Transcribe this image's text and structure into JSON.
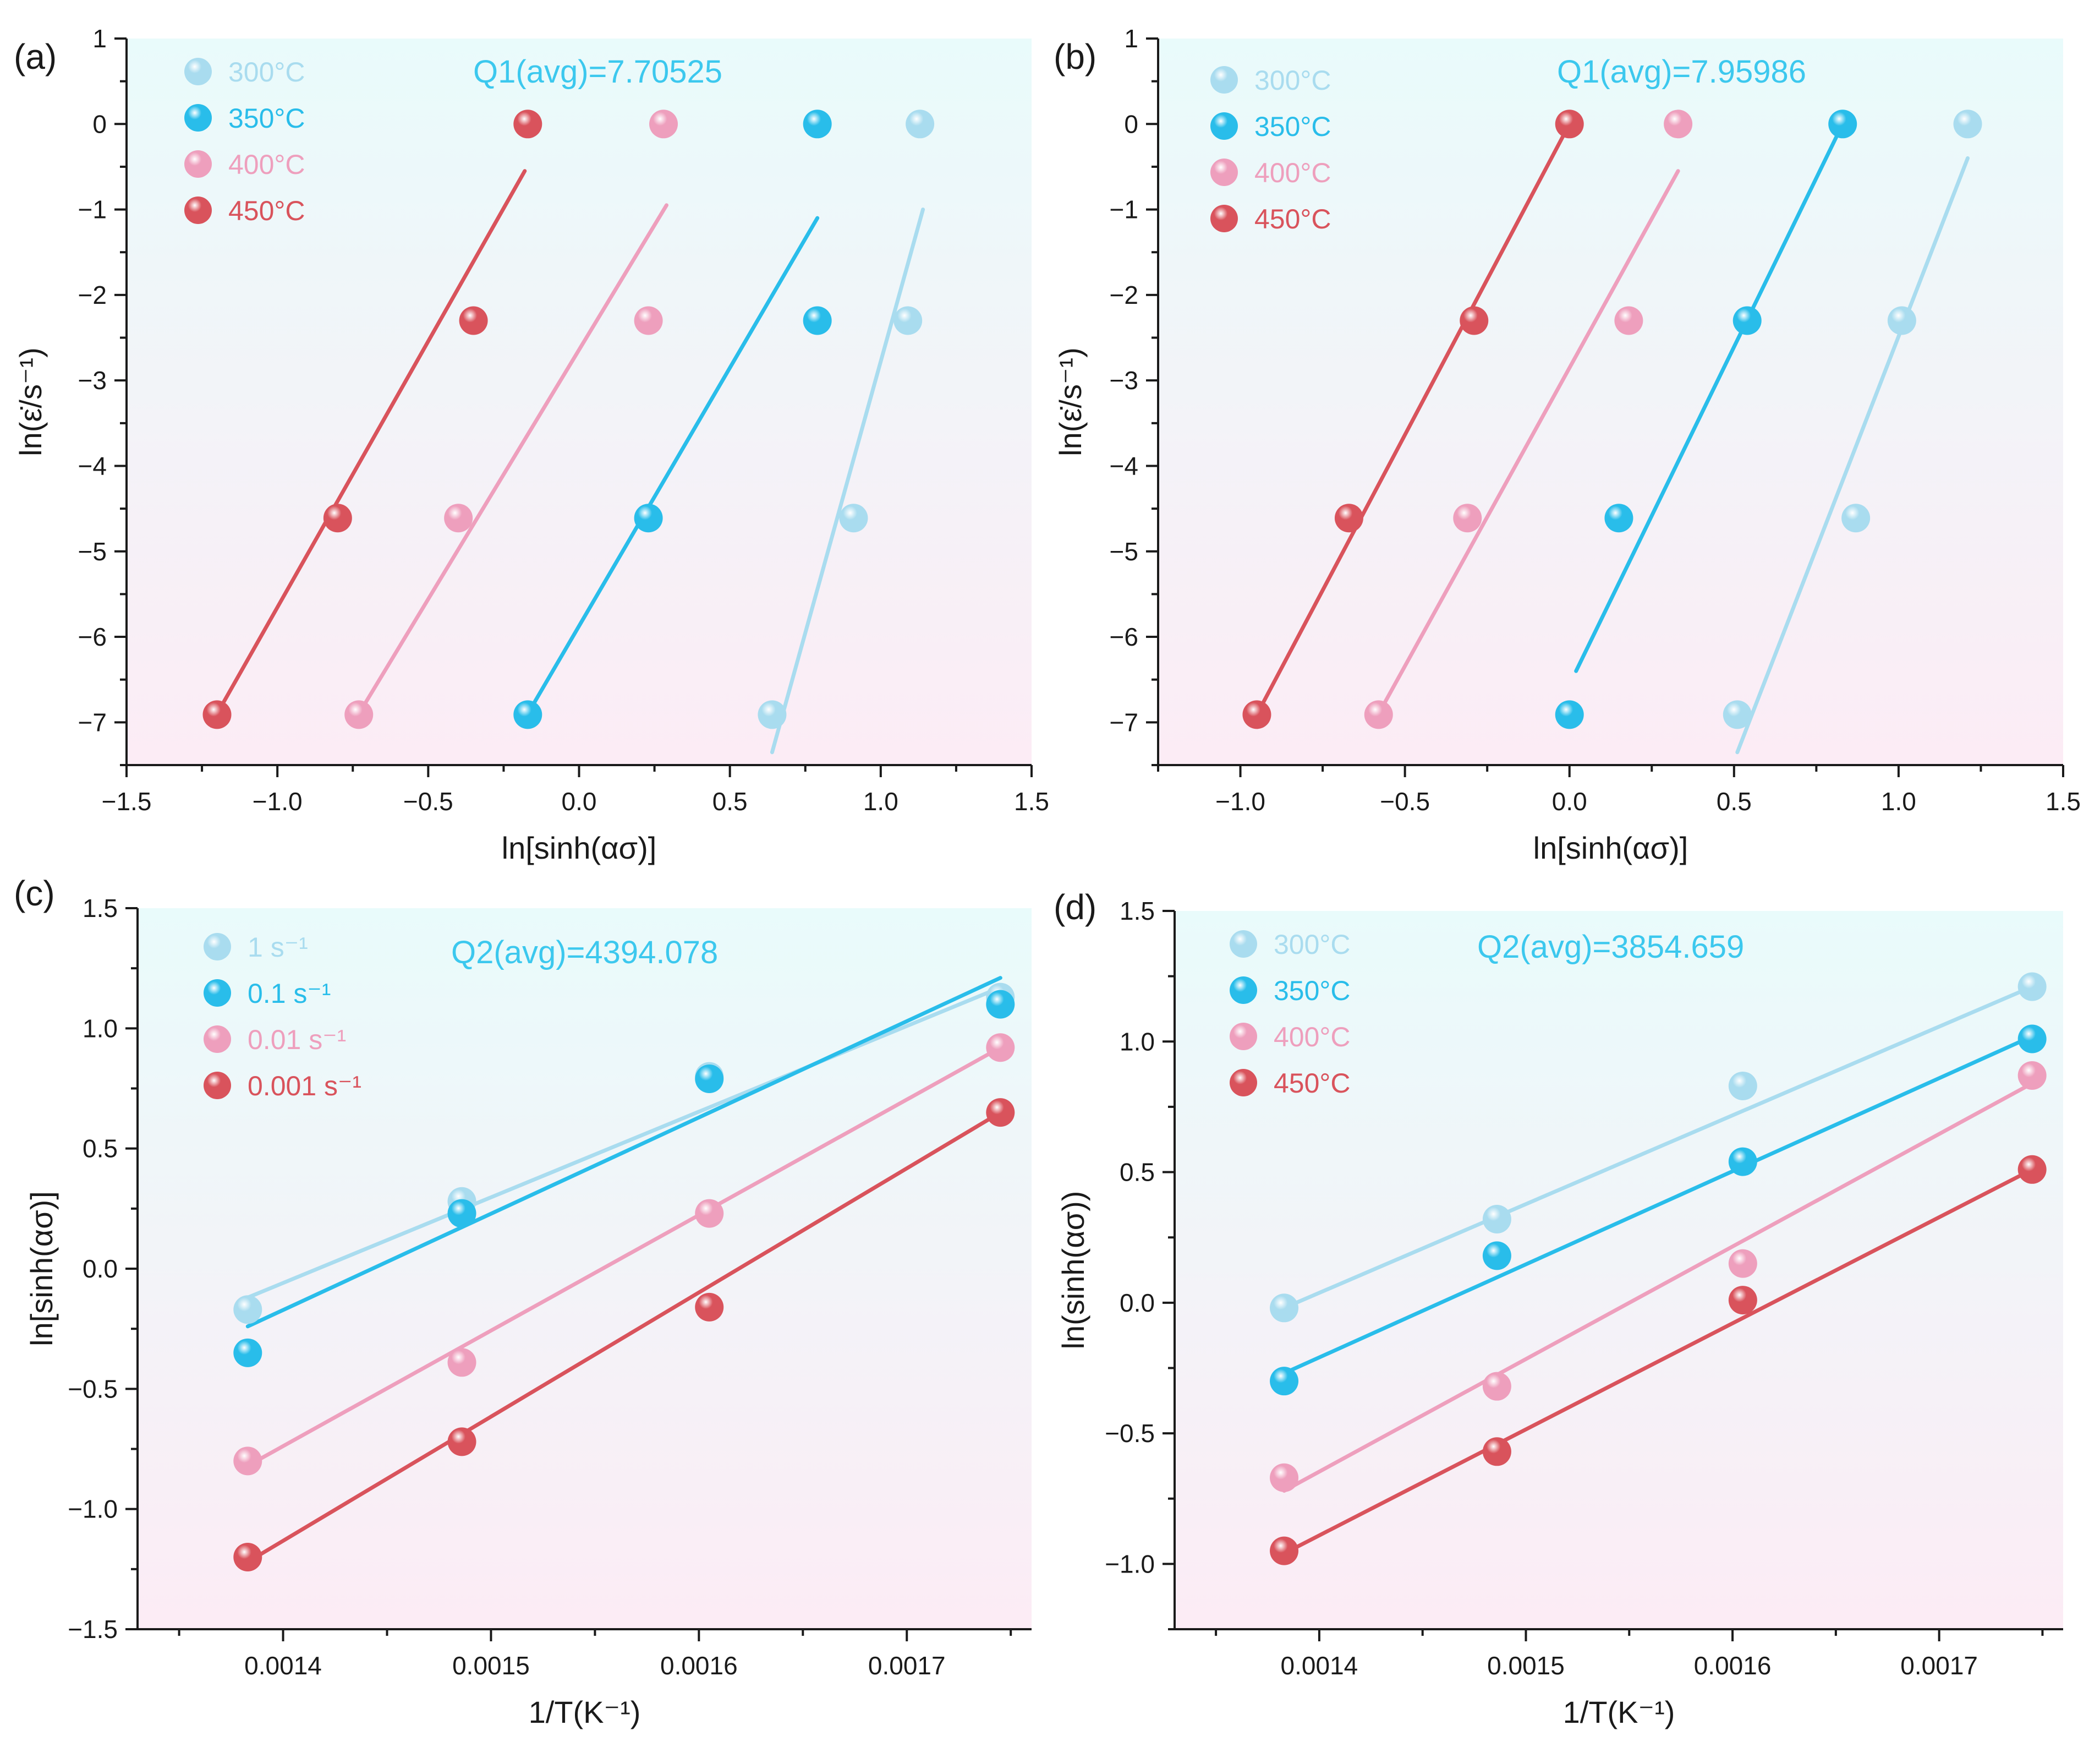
{
  "colors": {
    "light_blue": "#a9dcef",
    "blue": "#29bdea",
    "pink": "#ee9fbd",
    "red": "#d9535c",
    "bg_top": "#e9fbfb",
    "bg_bottom": "#fcecf5",
    "annotation": "#3cc8ee"
  },
  "chart_data": [
    {
      "type": "scatter",
      "panel_label": "(a)",
      "annotation": "Q1(avg)=7.70525",
      "xlabel": "ln[sinh(ασ)]",
      "ylabel": "ln(ε̇/s⁻¹)",
      "xlim": [
        -1.5,
        1.5
      ],
      "ylim": [
        -7.5,
        1
      ],
      "xticks": [
        -1.5,
        -1.0,
        -0.5,
        0.0,
        0.5,
        1.0,
        1.5
      ],
      "xtick_labels": [
        "−1.5",
        "−1.0",
        "−0.5",
        "0.0",
        "0.5",
        "1.0",
        "1.5"
      ],
      "yticks": [
        1,
        0,
        -1,
        -2,
        -3,
        -4,
        -5,
        -6,
        -7
      ],
      "ytick_labels": [
        "1",
        "0",
        "−1",
        "−2",
        "−3",
        "−4",
        "−5",
        "−6",
        "−7"
      ],
      "legend_position": "top-left",
      "series": [
        {
          "name": "300°C",
          "color": "light_blue",
          "x": [
            0.64,
            0.91,
            1.09,
            1.13
          ],
          "y": [
            -6.91,
            -4.61,
            -2.3,
            0.0
          ],
          "fit": [
            [
              0.64,
              -7.35
            ],
            [
              1.14,
              -1.0
            ]
          ]
        },
        {
          "name": "350°C",
          "color": "blue",
          "x": [
            -0.17,
            0.23,
            0.79,
            0.79
          ],
          "y": [
            -6.91,
            -4.61,
            -2.3,
            0.0
          ],
          "fit": [
            [
              -0.17,
              -6.9
            ],
            [
              0.79,
              -1.1
            ]
          ]
        },
        {
          "name": "400°C",
          "color": "pink",
          "x": [
            -0.73,
            -0.4,
            0.23,
            0.28
          ],
          "y": [
            -6.91,
            -4.61,
            -2.3,
            0.0
          ],
          "fit": [
            [
              -0.73,
              -6.9
            ],
            [
              0.29,
              -0.95
            ]
          ]
        },
        {
          "name": "450°C",
          "color": "red",
          "x": [
            -1.2,
            -0.8,
            -0.35,
            -0.17
          ],
          "y": [
            -6.91,
            -4.61,
            -2.3,
            0.0
          ],
          "fit": [
            [
              -1.2,
              -6.9
            ],
            [
              -0.18,
              -0.55
            ]
          ]
        }
      ]
    },
    {
      "type": "scatter",
      "panel_label": "(b)",
      "annotation": "Q1(avg)=7.95986",
      "xlabel": "ln[sinh(ασ)]",
      "ylabel": "ln(ε̇/s⁻¹)",
      "xlim": [
        -1.25,
        1.5
      ],
      "ylim": [
        -7.5,
        1
      ],
      "xticks": [
        -1.0,
        -0.5,
        0.0,
        0.5,
        1.0,
        1.5
      ],
      "xtick_labels": [
        "−1.0",
        "−0.5",
        "0.0",
        "0.5",
        "1.0",
        "1.5"
      ],
      "yticks": [
        1,
        0,
        -1,
        -2,
        -3,
        -4,
        -5,
        -6,
        -7
      ],
      "ytick_labels": [
        "1",
        "0",
        "−1",
        "−2",
        "−3",
        "−4",
        "−5",
        "−6",
        "−7"
      ],
      "legend_position": "top-left",
      "series": [
        {
          "name": "300°C",
          "color": "light_blue",
          "x": [
            0.51,
            0.87,
            1.01,
            1.21
          ],
          "y": [
            -6.91,
            -4.61,
            -2.3,
            0.0
          ],
          "fit": [
            [
              0.51,
              -7.35
            ],
            [
              1.21,
              -0.4
            ]
          ]
        },
        {
          "name": "350°C",
          "color": "blue",
          "x": [
            0.0,
            0.15,
            0.54,
            0.83
          ],
          "y": [
            -6.91,
            -4.61,
            -2.3,
            0.0
          ],
          "fit": [
            [
              0.02,
              -6.4
            ],
            [
              0.83,
              0.0
            ]
          ]
        },
        {
          "name": "400°C",
          "color": "pink",
          "x": [
            -0.58,
            -0.31,
            0.18,
            0.33
          ],
          "y": [
            -6.91,
            -4.61,
            -2.3,
            0.0
          ],
          "fit": [
            [
              -0.58,
              -6.9
            ],
            [
              0.33,
              -0.55
            ]
          ]
        },
        {
          "name": "450°C",
          "color": "red",
          "x": [
            -0.95,
            -0.67,
            -0.29,
            0.0
          ],
          "y": [
            -6.91,
            -4.61,
            -2.3,
            0.0
          ],
          "fit": [
            [
              -0.95,
              -6.91
            ],
            [
              0.0,
              0.0
            ]
          ]
        }
      ]
    },
    {
      "type": "scatter",
      "panel_label": "(c)",
      "annotation": "Q2(avg)=4394.078",
      "xlabel": "1/T(K⁻¹)",
      "ylabel": "ln[sinh(ασ)]",
      "xlim": [
        0.00133,
        0.00176
      ],
      "ylim": [
        -1.5,
        1.5
      ],
      "xticks": [
        0.0014,
        0.0015,
        0.0016,
        0.0017
      ],
      "xtick_labels": [
        "0.0014",
        "0.0015",
        "0.0016",
        "0.0017"
      ],
      "yticks": [
        1.5,
        1.0,
        0.5,
        0.0,
        -0.5,
        -1.0,
        -1.5
      ],
      "ytick_labels": [
        "1.5",
        "1.0",
        "0.5",
        "0.0",
        "−0.5",
        "−1.0",
        "−1.5"
      ],
      "legend_position": "top-left",
      "series": [
        {
          "name": "1 s⁻¹",
          "color": "light_blue",
          "x": [
            0.001383,
            0.001486,
            0.001605,
            0.001745
          ],
          "y": [
            -0.17,
            0.28,
            0.8,
            1.13
          ],
          "fit": [
            [
              0.001383,
              -0.12
            ],
            [
              0.001745,
              1.17
            ]
          ]
        },
        {
          "name": "0.1 s⁻¹",
          "color": "blue",
          "x": [
            0.001383,
            0.001486,
            0.001605,
            0.001745
          ],
          "y": [
            -0.35,
            0.23,
            0.79,
            1.1
          ],
          "fit": [
            [
              0.001383,
              -0.24
            ],
            [
              0.001745,
              1.21
            ]
          ]
        },
        {
          "name": "0.01 s⁻¹",
          "color": "pink",
          "x": [
            0.001383,
            0.001486,
            0.001605,
            0.001745
          ],
          "y": [
            -0.8,
            -0.39,
            0.23,
            0.92
          ],
          "fit": [
            [
              0.001383,
              -0.82
            ],
            [
              0.001745,
              0.92
            ]
          ]
        },
        {
          "name": "0.001 s⁻¹",
          "color": "red",
          "x": [
            0.001383,
            0.001486,
            0.001605,
            0.001745
          ],
          "y": [
            -1.2,
            -0.72,
            -0.16,
            0.65
          ],
          "fit": [
            [
              0.001383,
              -1.22
            ],
            [
              0.001745,
              0.65
            ]
          ]
        }
      ]
    },
    {
      "type": "scatter",
      "panel_label": "(d)",
      "annotation": "Q2(avg)=3854.659",
      "xlabel": "1/T(K⁻¹)",
      "ylabel": "ln(sinh(ασ))",
      "xlim": [
        0.00133,
        0.00176
      ],
      "ylim": [
        -1.25,
        1.5
      ],
      "xticks": [
        0.0014,
        0.0015,
        0.0016,
        0.0017
      ],
      "xtick_labels": [
        "0.0014",
        "0.0015",
        "0.0016",
        "0.0017"
      ],
      "yticks": [
        1.5,
        1.0,
        0.5,
        0.0,
        -0.5,
        -1.0
      ],
      "ytick_labels": [
        "1.5",
        "1.0",
        "0.5",
        "0.0",
        "−0.5",
        "−1.0"
      ],
      "legend_position": "top-left",
      "series": [
        {
          "name": "300°C",
          "color": "light_blue",
          "x": [
            0.001383,
            0.001486,
            0.001605,
            0.001745
          ],
          "y": [
            -0.02,
            0.32,
            0.83,
            1.21
          ],
          "fit": [
            [
              0.001383,
              -0.02
            ],
            [
              0.001745,
              1.21
            ]
          ]
        },
        {
          "name": "350°C",
          "color": "blue",
          "x": [
            0.001383,
            0.001486,
            0.001605,
            0.001745
          ],
          "y": [
            -0.3,
            0.18,
            0.54,
            1.01
          ],
          "fit": [
            [
              0.001383,
              -0.27
            ],
            [
              0.001745,
              1.02
            ]
          ]
        },
        {
          "name": "400°C",
          "color": "pink",
          "x": [
            0.001383,
            0.001486,
            0.001605,
            0.001745
          ],
          "y": [
            -0.67,
            -0.32,
            0.15,
            0.87
          ],
          "fit": [
            [
              0.001383,
              -0.72
            ],
            [
              0.001745,
              0.84
            ]
          ]
        },
        {
          "name": "450°C",
          "color": "red",
          "x": [
            0.001383,
            0.001486,
            0.001605,
            0.001745
          ],
          "y": [
            -0.95,
            -0.57,
            0.01,
            0.51
          ],
          "fit": [
            [
              0.001383,
              -0.96
            ],
            [
              0.001745,
              0.51
            ]
          ]
        }
      ]
    }
  ]
}
